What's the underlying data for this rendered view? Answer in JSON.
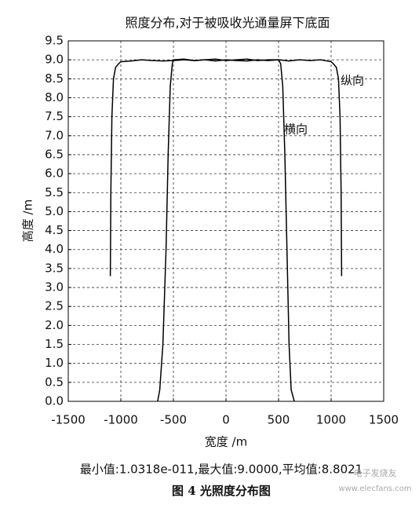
{
  "chart_data": {
    "type": "line",
    "title": "照度分布,对于被吸收光通量屏下底面",
    "x_label": "宽度 /m",
    "y_label": "高度 /m",
    "xlim": [
      -1500,
      1500
    ],
    "xticks": [
      -1500,
      -1000,
      -500,
      0,
      500,
      1000,
      1500
    ],
    "ylim": [
      0,
      9.5
    ],
    "yticks": [
      {
        "value": 0,
        "label": "0.0"
      },
      0.5,
      {
        "value": 1,
        "label": "1.0"
      },
      1.5,
      {
        "value": 2,
        "label": "2.0"
      },
      2.5,
      {
        "value": 3,
        "label": "3.0"
      },
      3.5,
      {
        "value": 4,
        "label": "4.0"
      },
      4.5,
      {
        "value": 5,
        "label": "5.0"
      },
      5.5,
      {
        "value": 6,
        "label": "6.0"
      },
      6.5,
      {
        "value": 7,
        "label": "7.0"
      },
      7.5,
      {
        "value": 8,
        "label": "8.0"
      },
      8.5,
      {
        "value": 9,
        "label": "9.0"
      },
      9.5
    ],
    "grid": true,
    "series": [
      {
        "name": "纵向",
        "color": "#000000",
        "x": [
          -1100,
          -1095,
          -1085,
          -1070,
          -1050,
          -1020,
          -1000,
          -900,
          -800,
          -700,
          -600,
          -500,
          -400,
          -300,
          -200,
          -100,
          0,
          100,
          200,
          300,
          400,
          500,
          600,
          700,
          800,
          900,
          1000,
          1020,
          1050,
          1070,
          1085,
          1095,
          1100
        ],
        "values": [
          3.3,
          5.5,
          7.5,
          8.5,
          8.8,
          8.9,
          8.95,
          8.97,
          9.0,
          8.98,
          8.97,
          8.98,
          9.0,
          8.98,
          9.0,
          8.97,
          9.0,
          8.98,
          8.97,
          9.0,
          8.98,
          9.0,
          8.97,
          9.0,
          8.98,
          9.0,
          8.95,
          8.9,
          8.8,
          8.5,
          7.5,
          5.5,
          3.3
        ]
      },
      {
        "name": "横向",
        "color": "#000000",
        "x": [
          -650,
          -630,
          -600,
          -570,
          -550,
          -530,
          -510,
          -500,
          -400,
          -300,
          -200,
          -100,
          0,
          100,
          200,
          300,
          400,
          500,
          520,
          540,
          560,
          580,
          600,
          620,
          650
        ],
        "values": [
          0,
          0.3,
          1.5,
          4.0,
          6.5,
          8.3,
          8.9,
          9.0,
          9.02,
          8.98,
          9.0,
          9.02,
          8.98,
          9.0,
          9.02,
          8.98,
          9.0,
          9.0,
          8.9,
          8.3,
          6.5,
          4.0,
          1.5,
          0.3,
          0
        ]
      }
    ],
    "caption": "最小值:1.0318e-011,最大值:9.0000,平均值:8.8021",
    "figure_label": "图 4  光照度分布图",
    "watermark": [
      "电子发烧友",
      "www.elecfans.com"
    ]
  }
}
